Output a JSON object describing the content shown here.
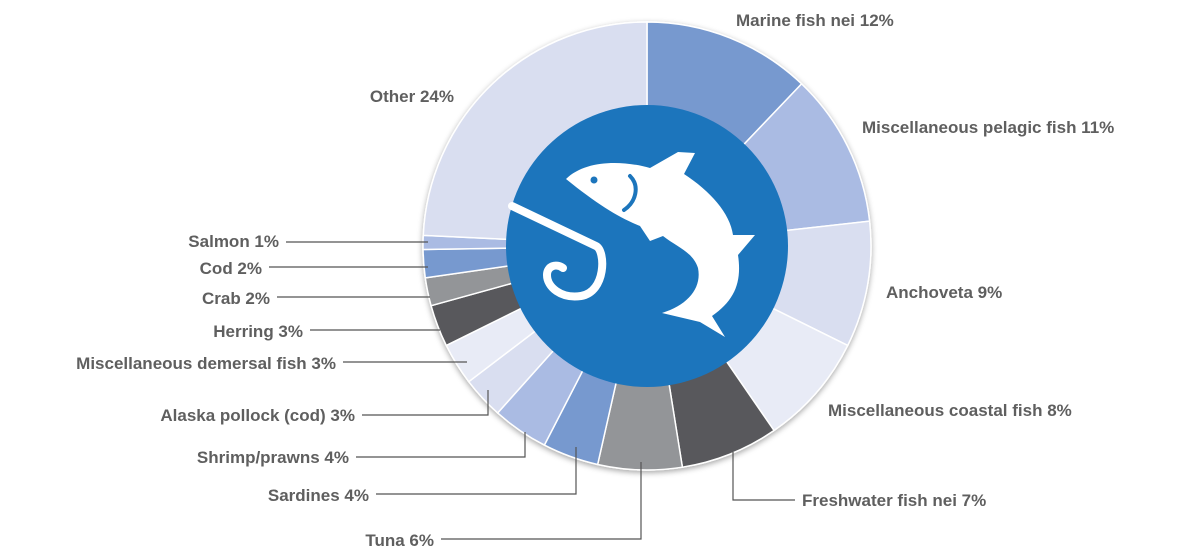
{
  "chart_data": {
    "type": "pie",
    "variant": "donut",
    "start": "12 o'clock",
    "direction": "clockwise",
    "slices": [
      {
        "label": "Marine fish nei 12%",
        "name": "Marine fish nei",
        "value": 12,
        "color": "#7799cf"
      },
      {
        "label": "Miscellaneous pelagic fish 11%",
        "name": "Miscellaneous pelagic fish",
        "value": 11,
        "color": "#aabbe3"
      },
      {
        "label": "Anchoveta 9%",
        "name": "Anchoveta",
        "value": 9,
        "color": "#d9def0"
      },
      {
        "label": "Miscellaneous coastal fish 8%",
        "name": "Miscellaneous coastal fish",
        "value": 8,
        "color": "#e8ebf6"
      },
      {
        "label": "Freshwater fish nei 7%",
        "name": "Freshwater fish nei",
        "value": 7,
        "color": "#58595b"
      },
      {
        "label": "Tuna 6%",
        "name": "Tuna",
        "value": 6,
        "color": "#939598"
      },
      {
        "label": "Sardines 4%",
        "name": "Sardines",
        "value": 4,
        "color": "#7799cf"
      },
      {
        "label": "Shrimp/prawns 4%",
        "name": "Shrimp/prawns",
        "value": 4,
        "color": "#aabbe3"
      },
      {
        "label": "Alaska pollock (cod) 3%",
        "name": "Alaska pollock (cod)",
        "value": 3,
        "color": "#d9def0"
      },
      {
        "label": "Miscellaneous demersal fish 3%",
        "name": "Miscellaneous demersal fish",
        "value": 3,
        "color": "#e8ebf6"
      },
      {
        "label": "Herring 3%",
        "name": "Herring",
        "value": 3,
        "color": "#58595b"
      },
      {
        "label": "Crab 2%",
        "name": "Crab",
        "value": 2,
        "color": "#939598"
      },
      {
        "label": "Cod 2%",
        "name": "Cod",
        "value": 2,
        "color": "#7799cf"
      },
      {
        "label": "Salmon 1%",
        "name": "Salmon",
        "value": 1,
        "color": "#aabbe3"
      },
      {
        "label": "Other 24%",
        "name": "Other",
        "value": 24,
        "color": "#d9def0"
      }
    ],
    "center_icon": "fish-on-hook-icon",
    "center_color": "#1c75bc"
  }
}
